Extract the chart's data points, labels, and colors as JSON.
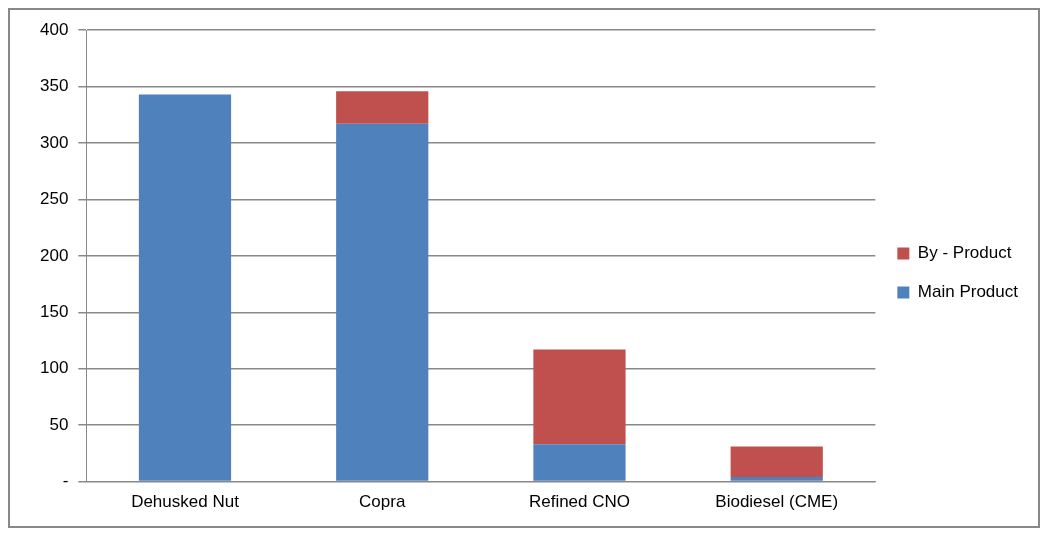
{
  "chart_data": {
    "type": "bar",
    "stacked": true,
    "categories": [
      "Dehusked Nut",
      "Copra",
      "Refined CNO",
      "Biodiesel (CME)"
    ],
    "series": [
      {
        "name": "Main Product",
        "color": "#4f81bd",
        "values": [
          343,
          317,
          33,
          4
        ]
      },
      {
        "name": "By - Product",
        "color": "#c0504d",
        "values": [
          0,
          29,
          84,
          27
        ]
      }
    ],
    "ylim": [
      0,
      400
    ],
    "yticks": [
      {
        "value": 0,
        "label": "-"
      },
      50,
      100,
      150,
      200,
      250,
      300,
      350,
      400
    ],
    "grid": "y",
    "legend": "right"
  }
}
